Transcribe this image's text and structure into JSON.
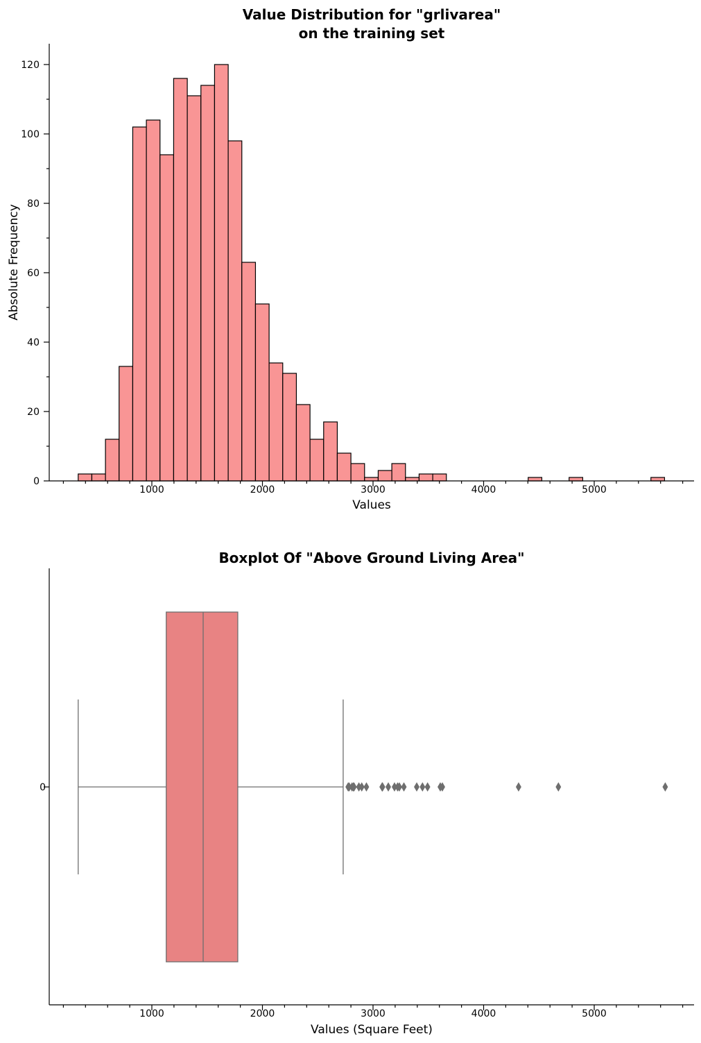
{
  "chart_data": [
    {
      "type": "bar",
      "subtype": "histogram",
      "title_line1": "Value Distribution for \"grlivarea\"",
      "title_line2": "on the training set",
      "xlabel": "Values",
      "ylabel": "Absolute Frequency",
      "xlim": [
        50,
        5900
      ],
      "ylim": [
        0,
        126
      ],
      "xticks": [
        1000,
        2000,
        3000,
        4000,
        5000
      ],
      "yticks": [
        0,
        20,
        40,
        60,
        80,
        100,
        120
      ],
      "bin_start": 334,
      "bin_width": 123.3,
      "counts": [
        2,
        2,
        12,
        33,
        102,
        104,
        94,
        116,
        111,
        114,
        120,
        98,
        63,
        51,
        34,
        31,
        22,
        12,
        17,
        8,
        5,
        1,
        3,
        5,
        1,
        2,
        2,
        0,
        0,
        0,
        0,
        0,
        0,
        1,
        0,
        0,
        1,
        0,
        0,
        0,
        0,
        0,
        1
      ],
      "bar_color": "#f99595",
      "edge_color": "#000000",
      "grid": false
    },
    {
      "type": "boxplot",
      "title": "Boxplot Of \"Above Ground Living Area\"",
      "xlabel": "Values (Square Feet)",
      "xlim": [
        50,
        5900
      ],
      "xticks": [
        1000,
        2000,
        3000,
        4000,
        5000
      ],
      "yticks": [
        "0"
      ],
      "stats": {
        "whisker_low": 334,
        "q1": 1130,
        "median": 1464,
        "q3": 1777,
        "whisker_high": 2730
      },
      "outliers": [
        2775,
        2784,
        2810,
        2822,
        2828,
        2872,
        2898,
        2940,
        3082,
        3086,
        3138,
        3194,
        3222,
        3238,
        3279,
        3395,
        3447,
        3493,
        3608,
        3627,
        4316,
        4676,
        5642
      ],
      "box_color": "#e88383",
      "line_color": "#6e6e6e",
      "grid": false
    }
  ]
}
